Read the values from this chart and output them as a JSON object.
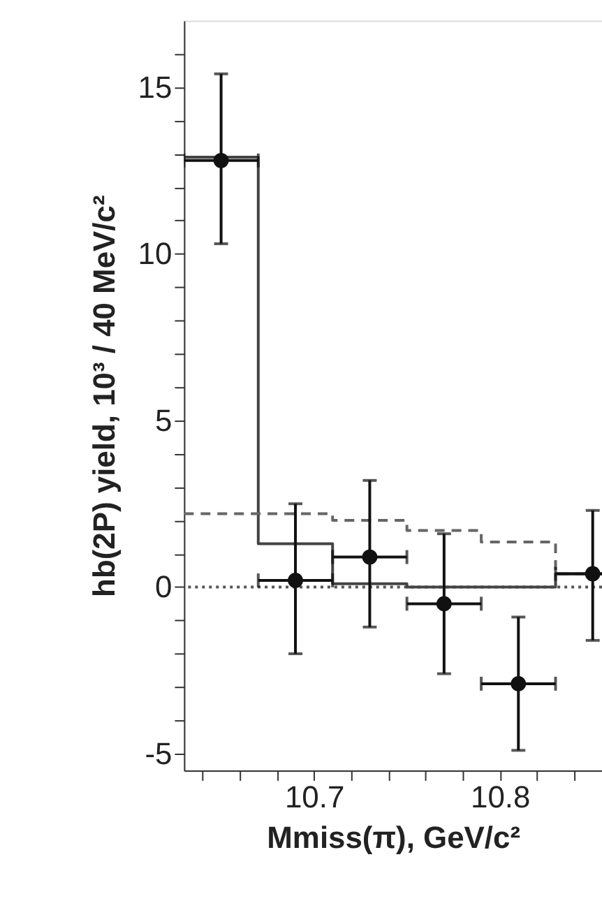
{
  "chart_data": {
    "type": "scatter",
    "xlabel": "Mmiss(π), GeV/c²",
    "ylabel": "hb(2P) yield, 10³ / 40 MeV/c²",
    "xlim": [
      10.63,
      10.855
    ],
    "ylim": [
      -5.5,
      17
    ],
    "xticks": [
      {
        "value": 10.64,
        "label": null
      },
      {
        "value": 10.66,
        "label": null
      },
      {
        "value": 10.68,
        "label": null
      },
      10.7,
      {
        "value": 10.72,
        "label": null
      },
      {
        "value": 10.74,
        "label": null
      },
      {
        "value": 10.76,
        "label": null
      },
      {
        "value": 10.78,
        "label": null
      },
      10.8,
      {
        "value": 10.82,
        "label": null
      },
      {
        "value": 10.84,
        "label": null
      }
    ],
    "yticks": [
      -5,
      {
        "value": -4,
        "label": null
      },
      {
        "value": -3,
        "label": null
      },
      {
        "value": -2,
        "label": null
      },
      {
        "value": -1,
        "label": null
      },
      0,
      {
        "value": 1,
        "label": null
      },
      {
        "value": 2,
        "label": null
      },
      {
        "value": 3,
        "label": null
      },
      {
        "value": 4,
        "label": null
      },
      5,
      {
        "value": 6,
        "label": null
      },
      {
        "value": 7,
        "label": null
      },
      {
        "value": 8,
        "label": null
      },
      {
        "value": 9,
        "label": null
      },
      10,
      {
        "value": 11,
        "label": null
      },
      {
        "value": 12,
        "label": null
      },
      {
        "value": 13,
        "label": null
      },
      {
        "value": 14,
        "label": null
      },
      15,
      {
        "value": 16,
        "label": null
      }
    ],
    "grid": false,
    "ref_lines": [
      {
        "axis": "y",
        "value": 0,
        "line_style": "dotted",
        "color": "#555555"
      }
    ],
    "series": [
      {
        "type": "step",
        "color": "#444444",
        "line_style": "solid",
        "x": [
          10.63,
          10.67,
          10.71,
          10.75,
          10.79,
          10.83,
          10.855
        ],
        "values": [
          12.9,
          1.3,
          0.1,
          0,
          0,
          0.4,
          0.4
        ]
      },
      {
        "type": "step",
        "color": "#666666",
        "line_style": "dashed",
        "x": [
          10.63,
          10.67,
          10.71,
          10.75,
          10.79,
          10.83,
          10.855
        ],
        "values": [
          2.2,
          2.2,
          2.0,
          1.7,
          1.35,
          0.4,
          0.4
        ]
      },
      {
        "type": "scatter",
        "color": "#111111",
        "marker": "circle",
        "x": [
          10.65,
          10.69,
          10.73,
          10.77,
          10.81,
          10.85
        ],
        "values": [
          12.8,
          0.2,
          0.9,
          -0.5,
          -2.9,
          0.4
        ],
        "errors": [
          [
            10.3,
            15.4
          ],
          [
            -2.0,
            2.5
          ],
          [
            -1.2,
            3.2
          ],
          [
            -2.6,
            1.6
          ],
          [
            -4.9,
            -0.9
          ],
          [
            -1.6,
            2.3
          ]
        ],
        "xerrors": [
          0.02,
          0.02,
          0.02,
          0.02,
          0.02,
          0.02
        ]
      }
    ]
  }
}
